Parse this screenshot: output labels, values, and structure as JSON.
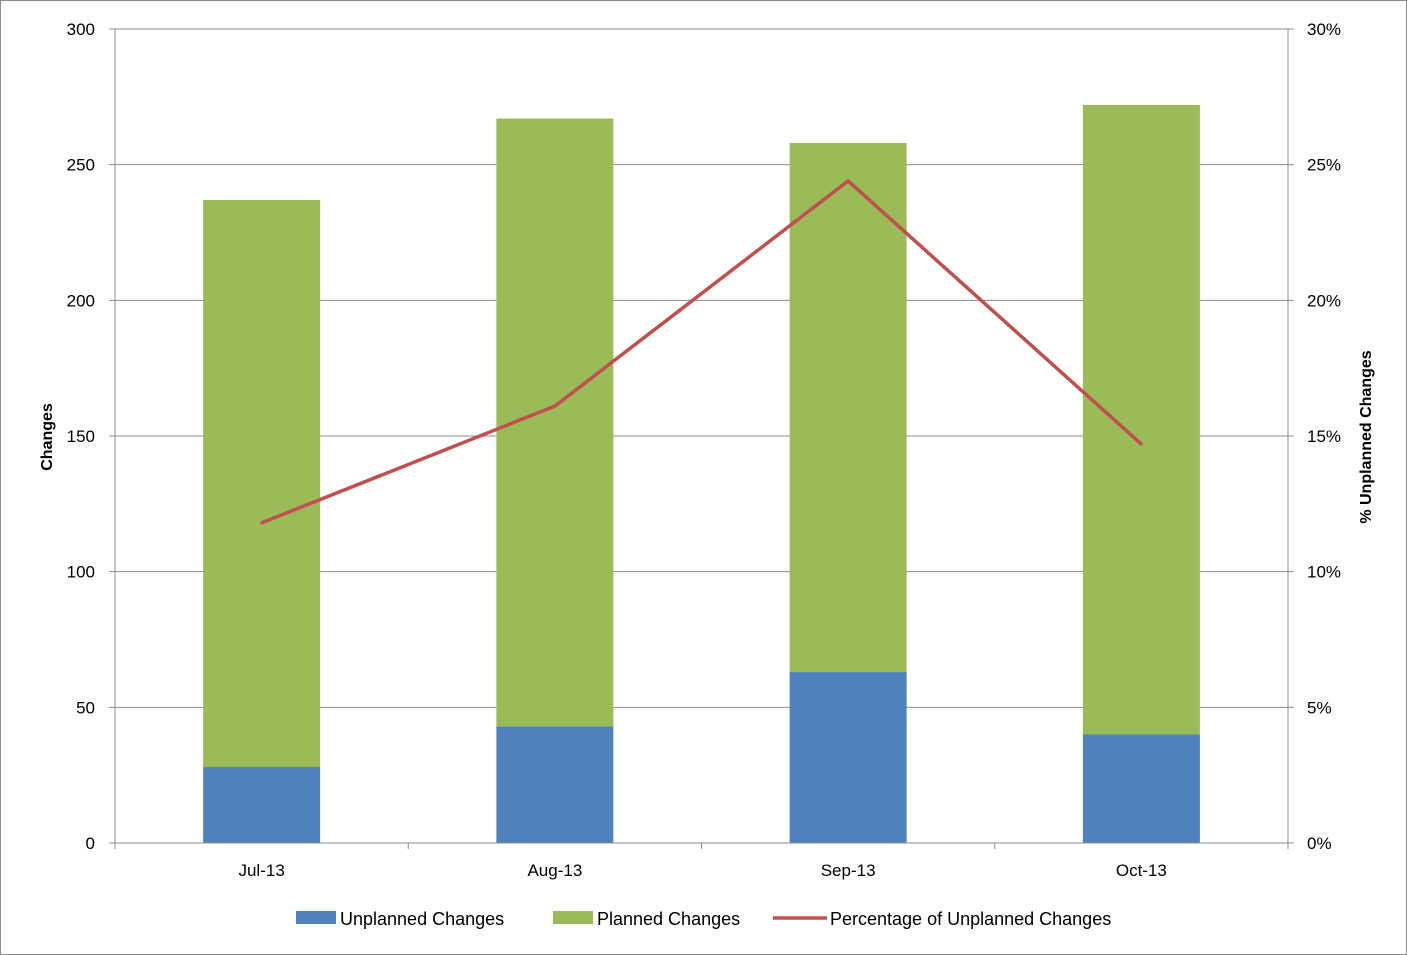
{
  "chart_data": {
    "type": "bar",
    "stacked": true,
    "categories": [
      "Jul-13",
      "Aug-13",
      "Sep-13",
      "Oct-13"
    ],
    "series": [
      {
        "name": "Unplanned Changes",
        "type": "bar",
        "axis": "left",
        "color": "#4f81bd",
        "values": [
          28,
          43,
          63,
          40
        ]
      },
      {
        "name": "Planned Changes",
        "type": "bar",
        "axis": "left",
        "color": "#9bbb59",
        "values": [
          209,
          224,
          195,
          232
        ]
      },
      {
        "name": "Percentage of Unplanned Changes",
        "type": "line",
        "axis": "right",
        "color": "#c0504d",
        "values": [
          0.118,
          0.161,
          0.244,
          0.147
        ]
      }
    ],
    "xlabel": "",
    "ylabel": "Changes",
    "y2label": "% Unplanned Changes",
    "ylim": [
      0,
      300
    ],
    "y2lim": [
      0,
      0.3
    ],
    "yticks": [
      "0",
      "50",
      "100",
      "150",
      "200",
      "250",
      "300"
    ],
    "y2ticks": [
      "0%",
      "5%",
      "10%",
      "15%",
      "20%",
      "25%",
      "30%"
    ],
    "grid": true,
    "legend_position": "bottom",
    "gridline_color": "#8c8c8c"
  }
}
